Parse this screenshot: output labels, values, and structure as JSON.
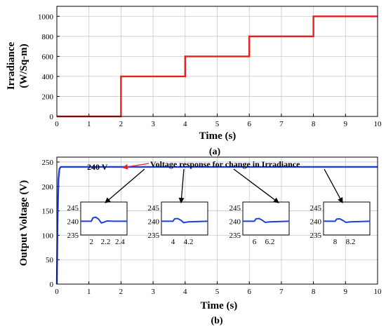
{
  "chart_data": [
    {
      "type": "line",
      "panel_label": "(a)",
      "xlabel": "Time (s)",
      "ylabel": "Irradiance (W/Sq-m)",
      "ylabel_lines": [
        "Irradiance",
        "(W/Sq-m)"
      ],
      "xlim": [
        0,
        10
      ],
      "ylim": [
        0,
        1100
      ],
      "xticks": [
        0,
        1,
        2,
        3,
        4,
        5,
        6,
        7,
        8,
        9,
        10
      ],
      "yticks": [
        0,
        200,
        400,
        600,
        800,
        1000
      ],
      "grid": true,
      "line_color": "#e8201c",
      "series": [
        {
          "x": [
            0,
            2,
            2,
            4,
            4,
            6,
            6,
            8,
            8,
            10
          ],
          "y": [
            0,
            0,
            400,
            400,
            600,
            600,
            800,
            800,
            1000,
            1000
          ]
        }
      ]
    },
    {
      "type": "line",
      "panel_label": "(b)",
      "xlabel": "Time (s)",
      "ylabel": "Output Voltage  (V)",
      "xlim": [
        0,
        10
      ],
      "ylim": [
        0,
        260
      ],
      "xticks": [
        0,
        1,
        2,
        3,
        4,
        5,
        6,
        7,
        8,
        9,
        10
      ],
      "yticks": [
        0,
        50,
        100,
        150,
        200,
        250
      ],
      "grid": true,
      "line_color": "#1f3fd6",
      "series": [
        {
          "x": [
            0,
            0.02,
            0.05,
            0.08,
            0.12,
            0.2,
            10
          ],
          "y": [
            0,
            120,
            215,
            236,
            240,
            240,
            240
          ]
        }
      ],
      "annotations": {
        "value_label": "240 V",
        "callout": "Voltage response for change in Irradiance"
      },
      "insets": [
        {
          "xticks": [
            2,
            2.2,
            2.4
          ],
          "xtick_labels": [
            "2",
            "2.2",
            "2.4"
          ],
          "yticks": [
            235,
            240,
            245
          ],
          "xlim": [
            1.85,
            2.5
          ],
          "ylim": [
            235,
            247
          ],
          "x": [
            1.85,
            2.0,
            2.02,
            2.06,
            2.1,
            2.14,
            2.18,
            2.22,
            2.3,
            2.5
          ],
          "y": [
            240,
            240,
            241.2,
            241.5,
            240.8,
            239.4,
            239.7,
            240.1,
            240,
            240
          ]
        },
        {
          "xticks": [
            4,
            4.2
          ],
          "xtick_labels": [
            "4",
            "4.2"
          ],
          "yticks": [
            235,
            240,
            245
          ],
          "xlim": [
            3.85,
            4.45
          ],
          "ylim": [
            235,
            247
          ],
          "x": [
            3.85,
            4.0,
            4.02,
            4.06,
            4.1,
            4.14,
            4.2,
            4.45
          ],
          "y": [
            240,
            240,
            240.9,
            241.0,
            240.4,
            239.5,
            239.8,
            240
          ]
        },
        {
          "xticks": [
            6,
            6.2
          ],
          "xtick_labels": [
            "6",
            "6.2"
          ],
          "yticks": [
            235,
            240,
            245
          ],
          "xlim": [
            5.85,
            6.45
          ],
          "ylim": [
            235,
            247
          ],
          "x": [
            5.85,
            6.0,
            6.02,
            6.06,
            6.1,
            6.14,
            6.2,
            6.45
          ],
          "y": [
            240,
            240,
            240.9,
            241.0,
            240.4,
            239.6,
            239.8,
            240
          ]
        },
        {
          "xticks": [
            8,
            8.2
          ],
          "xtick_labels": [
            "8",
            "8.2"
          ],
          "yticks": [
            235,
            240,
            245
          ],
          "xlim": [
            7.85,
            8.45
          ],
          "ylim": [
            235,
            247
          ],
          "x": [
            7.85,
            8.0,
            8.02,
            8.06,
            8.1,
            8.14,
            8.2,
            8.45
          ],
          "y": [
            240,
            240,
            240.8,
            240.9,
            240.3,
            239.6,
            239.8,
            240
          ]
        }
      ]
    }
  ]
}
